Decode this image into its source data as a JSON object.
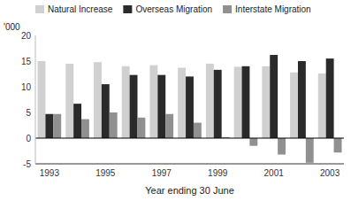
{
  "chart_data": {
    "type": "bar",
    "categories": [
      "1993",
      null,
      "1995",
      null,
      "1997",
      null,
      "1999",
      null,
      "2001",
      null,
      "2003"
    ],
    "series": [
      {
        "name": "Natural Increase",
        "color": "#d0d0d0",
        "values": [
          15.0,
          14.5,
          14.8,
          14.0,
          14.2,
          13.7,
          14.5,
          13.9,
          14.0,
          12.8,
          12.6
        ]
      },
      {
        "name": "Overseas Migration",
        "color": "#2a2a2a",
        "values": [
          4.7,
          6.7,
          10.5,
          12.3,
          12.3,
          12.0,
          13.3,
          14.0,
          16.2,
          15.0,
          15.5
        ]
      },
      {
        "name": "Interstate Migration",
        "color": "#909090",
        "values": [
          4.7,
          3.7,
          5.0,
          4.0,
          4.7,
          3.0,
          0.2,
          -1.5,
          -3.2,
          -4.8,
          -2.8
        ]
      }
    ],
    "xlabel": "Year ending 30 June",
    "ylabel": "'000",
    "ylim": [
      -5,
      20
    ],
    "yticks": [
      -5,
      0,
      5,
      10,
      15,
      20
    ],
    "grid": false,
    "legend": "upper left"
  }
}
